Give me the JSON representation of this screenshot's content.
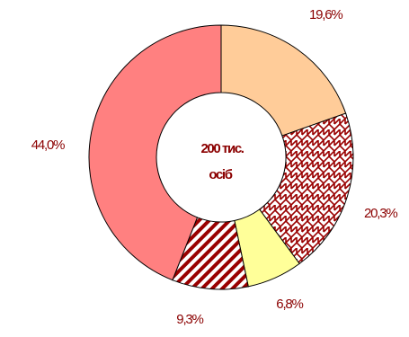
{
  "chart_data": {
    "type": "pie",
    "donut": true,
    "center_label": [
      "200 тис.",
      "осіб"
    ],
    "legend": "none",
    "slices": [
      {
        "label": "19,6%",
        "value": 19.6,
        "color": "#ffcc99",
        "pattern": "solid"
      },
      {
        "label": "20,3%",
        "value": 20.3,
        "color": "#990000",
        "pattern": "brick"
      },
      {
        "label": "6,8%",
        "value": 6.8,
        "color": "#ffff99",
        "pattern": "solid"
      },
      {
        "label": "9,3%",
        "value": 9.3,
        "color": "#990000",
        "pattern": "diagonal"
      },
      {
        "label": "44,0%",
        "value": 44.0,
        "color": "#ff8080",
        "pattern": "solid"
      }
    ]
  }
}
